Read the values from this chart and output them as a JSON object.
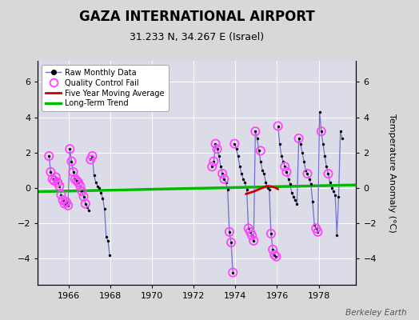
{
  "title": "GAZA INTERNATIONAL AIRPORT",
  "subtitle": "31.233 N, 34.267 E (Israel)",
  "ylabel": "Temperature Anomaly (°C)",
  "watermark": "Berkeley Earth",
  "xlim": [
    1964.5,
    1979.8
  ],
  "ylim": [
    -5.5,
    7.2
  ],
  "yticks": [
    -4,
    -2,
    0,
    2,
    4,
    6
  ],
  "xticks": [
    1966,
    1968,
    1970,
    1972,
    1974,
    1976,
    1978
  ],
  "bg_color": "#d8d8d8",
  "plot_bg_color": "#dcdce8",
  "raw_line_color": "#7070cc",
  "raw_dot_color": "#000000",
  "qc_fail_color": "#ff44ff",
  "moving_avg_color": "#cc0000",
  "trend_color": "#00bb00",
  "segments": [
    [
      [
        1965.042,
        1.8
      ],
      [
        1965.125,
        0.9
      ],
      [
        1965.208,
        0.5
      ],
      [
        1965.292,
        0.4
      ],
      [
        1965.375,
        0.6
      ],
      [
        1965.458,
        0.3
      ],
      [
        1965.542,
        0.1
      ],
      [
        1965.625,
        -0.4
      ],
      [
        1965.708,
        -0.7
      ],
      [
        1965.792,
        -0.9
      ],
      [
        1965.875,
        -0.8
      ],
      [
        1965.958,
        -1.0
      ],
      [
        1966.042,
        2.2
      ],
      [
        1966.125,
        1.5
      ],
      [
        1966.208,
        0.9
      ],
      [
        1966.292,
        0.5
      ],
      [
        1966.375,
        0.4
      ],
      [
        1966.458,
        0.3
      ],
      [
        1966.542,
        0.1
      ],
      [
        1966.625,
        -0.2
      ],
      [
        1966.708,
        -0.5
      ],
      [
        1966.792,
        -0.9
      ],
      [
        1966.875,
        -1.1
      ],
      [
        1966.958,
        -1.3
      ]
    ],
    [
      [
        1967.042,
        1.6
      ],
      [
        1967.125,
        1.8
      ],
      [
        1967.208,
        0.7
      ],
      [
        1967.292,
        0.3
      ],
      [
        1967.375,
        0.1
      ],
      [
        1967.458,
        0.0
      ],
      [
        1967.542,
        -0.3
      ],
      [
        1967.625,
        -0.6
      ],
      [
        1967.708,
        -1.2
      ],
      [
        1967.792,
        -2.8
      ],
      [
        1967.875,
        -3.0
      ],
      [
        1967.958,
        -3.8
      ]
    ],
    [
      [
        1972.875,
        1.2
      ],
      [
        1972.958,
        1.5
      ],
      [
        1973.042,
        2.5
      ],
      [
        1973.125,
        2.2
      ],
      [
        1973.208,
        1.8
      ],
      [
        1973.292,
        1.2
      ],
      [
        1973.375,
        0.8
      ],
      [
        1973.458,
        0.5
      ],
      [
        1973.542,
        0.3
      ],
      [
        1973.625,
        -0.1
      ],
      [
        1973.708,
        -2.5
      ],
      [
        1973.792,
        -3.1
      ],
      [
        1973.875,
        -4.8
      ]
    ],
    [
      [
        1973.958,
        2.5
      ],
      [
        1974.042,
        2.2
      ],
      [
        1974.125,
        1.8
      ],
      [
        1974.208,
        1.2
      ],
      [
        1974.292,
        0.8
      ],
      [
        1974.375,
        0.5
      ],
      [
        1974.458,
        0.3
      ],
      [
        1974.542,
        -0.1
      ],
      [
        1974.625,
        -2.3
      ],
      [
        1974.708,
        -2.5
      ],
      [
        1974.792,
        -2.7
      ],
      [
        1974.875,
        -3.0
      ],
      [
        1974.958,
        3.2
      ],
      [
        1975.042,
        2.8
      ],
      [
        1975.125,
        2.1
      ],
      [
        1975.208,
        1.5
      ],
      [
        1975.292,
        1.0
      ],
      [
        1975.375,
        0.8
      ],
      [
        1975.458,
        0.3
      ],
      [
        1975.542,
        0.0
      ],
      [
        1975.625,
        -0.1
      ],
      [
        1975.708,
        -2.6
      ],
      [
        1975.792,
        -3.5
      ],
      [
        1975.875,
        -3.8
      ],
      [
        1975.958,
        -3.9
      ]
    ],
    [
      [
        1976.042,
        3.5
      ],
      [
        1976.125,
        2.5
      ],
      [
        1976.208,
        1.8
      ],
      [
        1976.292,
        1.5
      ],
      [
        1976.375,
        1.2
      ],
      [
        1976.458,
        0.9
      ],
      [
        1976.542,
        0.5
      ],
      [
        1976.625,
        0.2
      ],
      [
        1976.708,
        -0.3
      ],
      [
        1976.792,
        -0.5
      ],
      [
        1976.875,
        -0.7
      ],
      [
        1976.958,
        -0.9
      ],
      [
        1977.042,
        2.8
      ],
      [
        1977.125,
        2.5
      ],
      [
        1977.208,
        2.0
      ],
      [
        1977.292,
        1.5
      ],
      [
        1977.375,
        1.0
      ],
      [
        1977.458,
        0.8
      ],
      [
        1977.542,
        0.5
      ],
      [
        1977.625,
        0.2
      ],
      [
        1977.708,
        -0.8
      ],
      [
        1977.792,
        -2.1
      ],
      [
        1977.875,
        -2.3
      ],
      [
        1977.958,
        -2.5
      ],
      [
        1978.042,
        4.3
      ],
      [
        1978.125,
        3.2
      ],
      [
        1978.208,
        2.5
      ],
      [
        1978.292,
        1.8
      ],
      [
        1978.375,
        1.2
      ],
      [
        1978.458,
        0.8
      ],
      [
        1978.542,
        0.3
      ],
      [
        1978.625,
        0.0
      ],
      [
        1978.708,
        -0.2
      ],
      [
        1978.792,
        -0.4
      ],
      [
        1978.875,
        -2.7
      ],
      [
        1978.958,
        -0.5
      ],
      [
        1979.042,
        3.2
      ],
      [
        1979.125,
        2.8
      ]
    ]
  ],
  "qc_fail_points": [
    [
      1965.042,
      1.8
    ],
    [
      1965.125,
      0.9
    ],
    [
      1965.208,
      0.5
    ],
    [
      1965.292,
      0.4
    ],
    [
      1965.375,
      0.6
    ],
    [
      1965.458,
      0.3
    ],
    [
      1965.542,
      0.1
    ],
    [
      1965.625,
      -0.4
    ],
    [
      1965.708,
      -0.7
    ],
    [
      1965.792,
      -0.9
    ],
    [
      1965.875,
      -0.8
    ],
    [
      1965.958,
      -1.0
    ],
    [
      1966.042,
      2.2
    ],
    [
      1966.125,
      1.5
    ],
    [
      1966.208,
      0.9
    ],
    [
      1966.292,
      0.5
    ],
    [
      1966.375,
      0.4
    ],
    [
      1966.458,
      0.3
    ],
    [
      1966.542,
      0.1
    ],
    [
      1966.625,
      -0.2
    ],
    [
      1966.708,
      -0.5
    ],
    [
      1966.792,
      -0.9
    ],
    [
      1967.042,
      1.6
    ],
    [
      1967.125,
      1.8
    ],
    [
      1972.875,
      1.2
    ],
    [
      1972.958,
      1.5
    ],
    [
      1973.042,
      2.5
    ],
    [
      1973.125,
      2.2
    ],
    [
      1973.375,
      0.8
    ],
    [
      1973.458,
      0.5
    ],
    [
      1973.708,
      -2.5
    ],
    [
      1973.792,
      -3.1
    ],
    [
      1973.875,
      -4.8
    ],
    [
      1973.958,
      2.5
    ],
    [
      1974.625,
      -2.3
    ],
    [
      1974.708,
      -2.5
    ],
    [
      1974.792,
      -2.7
    ],
    [
      1974.875,
      -3.0
    ],
    [
      1974.958,
      3.2
    ],
    [
      1975.208,
      2.1
    ],
    [
      1975.708,
      -2.6
    ],
    [
      1975.792,
      -3.5
    ],
    [
      1975.875,
      -3.8
    ],
    [
      1975.958,
      -3.9
    ],
    [
      1976.042,
      3.5
    ],
    [
      1976.375,
      1.2
    ],
    [
      1976.458,
      0.9
    ],
    [
      1977.042,
      2.8
    ],
    [
      1977.458,
      0.8
    ],
    [
      1977.875,
      -2.3
    ],
    [
      1977.958,
      -2.5
    ],
    [
      1978.125,
      3.2
    ],
    [
      1978.458,
      0.8
    ]
  ],
  "moving_avg": [
    [
      1974.5,
      -0.35
    ],
    [
      1974.7,
      -0.28
    ],
    [
      1974.9,
      -0.2
    ],
    [
      1975.1,
      -0.1
    ],
    [
      1975.3,
      0.0
    ],
    [
      1975.5,
      0.1
    ],
    [
      1975.7,
      0.08
    ],
    [
      1975.9,
      0.02
    ],
    [
      1976.0,
      -0.05
    ],
    [
      1976.05,
      -0.08
    ]
  ],
  "trend_line": [
    [
      1964.5,
      -0.22
    ],
    [
      1979.8,
      0.16
    ]
  ],
  "grid_color": "#ffffff",
  "title_fontsize": 12,
  "subtitle_fontsize": 9,
  "tick_fontsize": 8,
  "ylabel_fontsize": 8
}
